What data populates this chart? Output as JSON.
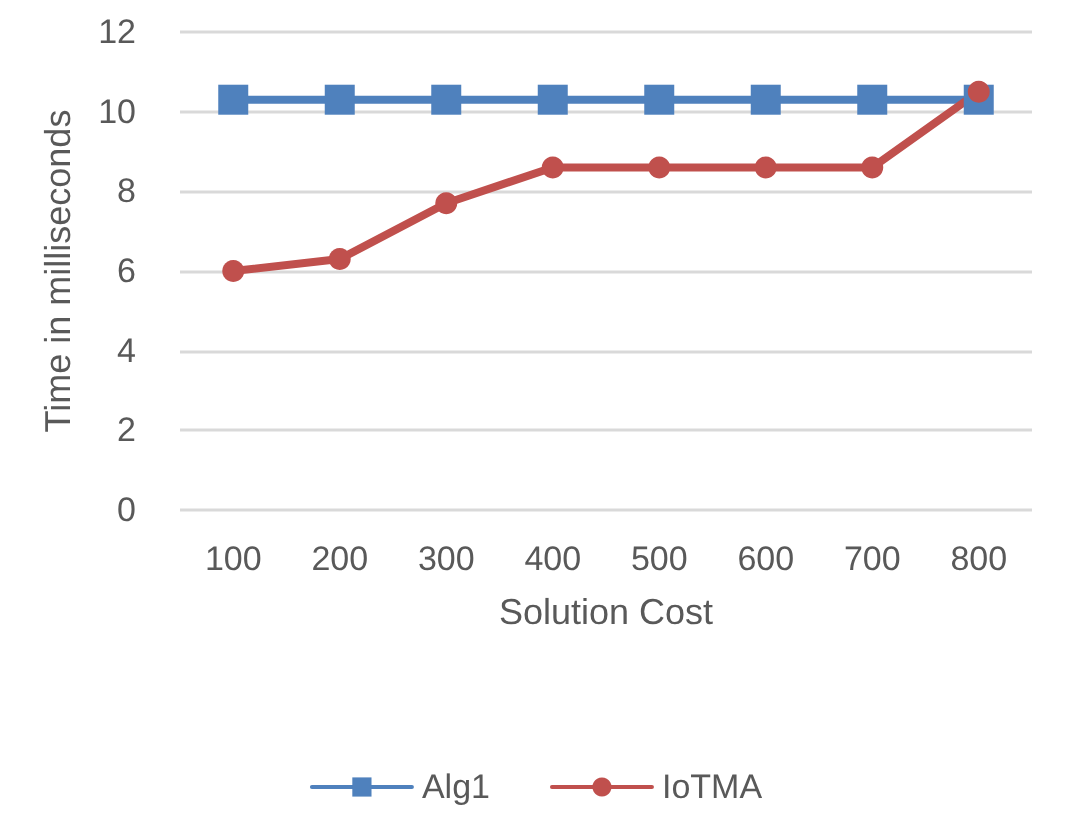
{
  "chart_data": {
    "type": "line",
    "xlabel": "Solution Cost",
    "ylabel": "Time in milliseconds",
    "categories": [
      "100",
      "200",
      "300",
      "400",
      "500",
      "600",
      "700",
      "800"
    ],
    "series": [
      {
        "name": "Alg1",
        "color": "#4f81bd",
        "marker": "square",
        "values": [
          10.3,
          10.3,
          10.3,
          10.3,
          10.3,
          10.3,
          10.3,
          10.3
        ]
      },
      {
        "name": "IoTMA",
        "color": "#c0504d",
        "marker": "circle",
        "values": [
          6.0,
          6.3,
          7.7,
          8.6,
          8.6,
          8.6,
          8.6,
          10.5
        ]
      }
    ],
    "ylim": [
      0,
      12
    ],
    "yticks": [
      0,
      2,
      4,
      6,
      8,
      10,
      12
    ],
    "grid": "y",
    "legend": "bottom"
  }
}
